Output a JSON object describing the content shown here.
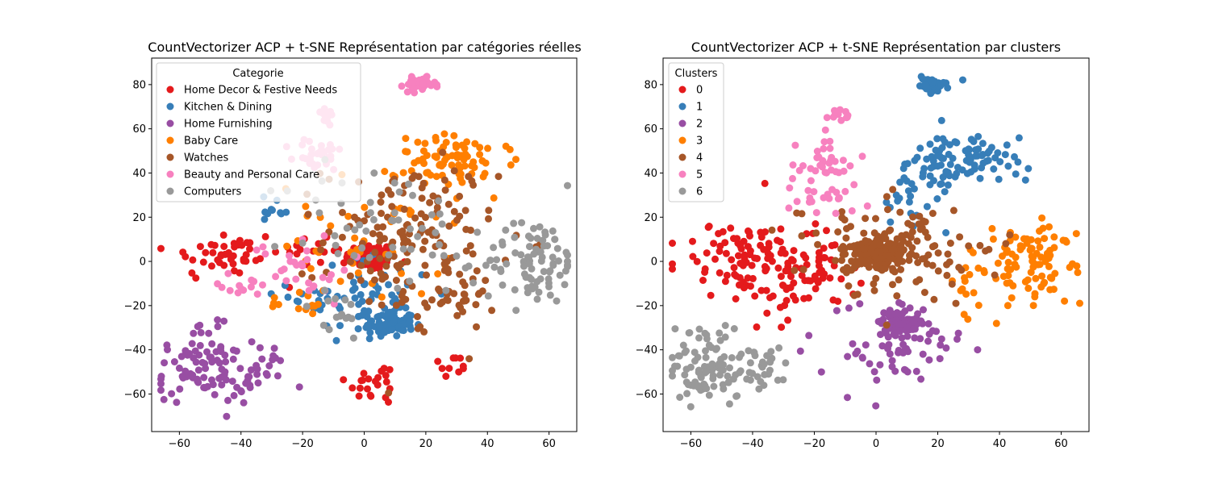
{
  "chart_data": [
    {
      "type": "scatter",
      "title": "CountVectorizer ACP + t-SNE Représentation par catégories réelles",
      "xlabel": "",
      "ylabel": "",
      "xlim": [
        -69,
        69
      ],
      "ylim": [
        -77,
        92
      ],
      "xticks": [
        -60,
        -40,
        -20,
        0,
        20,
        40,
        60
      ],
      "yticks": [
        -60,
        -40,
        -20,
        0,
        20,
        40,
        60,
        80
      ],
      "grid": false,
      "legend": {
        "title": "Categorie",
        "placement": "top-left"
      },
      "series": [
        {
          "name": "Home Decor & Festive Needs",
          "color": "#e41a1c",
          "clusters": [
            {
              "cx": 2,
              "cy": 2,
              "sx": 4,
              "sy": 3,
              "n": 90
            },
            {
              "cx": -45,
              "cy": 3,
              "sx": 9,
              "sy": 6,
              "n": 45
            },
            {
              "cx": 4,
              "cy": -55,
              "sx": 5,
              "sy": 5,
              "n": 22
            },
            {
              "cx": 28,
              "cy": -48,
              "sx": 3,
              "sy": 3,
              "n": 10
            },
            {
              "cx": -15,
              "cy": 5,
              "sx": 6,
              "sy": 4,
              "n": 15
            }
          ]
        },
        {
          "name": "Kitchen & Dining",
          "color": "#377eb8",
          "clusters": [
            {
              "cx": 8,
              "cy": -28,
              "sx": 4,
              "sy": 3,
              "n": 80
            },
            {
              "cx": 0,
              "cy": -15,
              "sx": 12,
              "sy": 9,
              "n": 60
            },
            {
              "cx": -30,
              "cy": 22,
              "sx": 3,
              "sy": 4,
              "n": 10
            }
          ]
        },
        {
          "name": "Home Furnishing",
          "color": "#984ea3",
          "clusters": [
            {
              "cx": -52,
              "cy": -50,
              "sx": 8,
              "sy": 7,
              "n": 75
            },
            {
              "cx": -35,
              "cy": -50,
              "sx": 5,
              "sy": 6,
              "n": 25
            },
            {
              "cx": -52,
              "cy": -33,
              "sx": 3,
              "sy": 3,
              "n": 12
            }
          ]
        },
        {
          "name": "Baby Care",
          "color": "#ff7f00",
          "clusters": [
            {
              "cx": 30,
              "cy": 45,
              "sx": 10,
              "sy": 6,
              "n": 80
            },
            {
              "cx": 0,
              "cy": 10,
              "sx": 14,
              "sy": 14,
              "n": 45
            },
            {
              "cx": -22,
              "cy": -20,
              "sx": 5,
              "sy": 3,
              "n": 12
            }
          ]
        },
        {
          "name": "Watches",
          "color": "#a65628",
          "clusters": [
            {
              "cx": 15,
              "cy": 10,
              "sx": 14,
              "sy": 18,
              "n": 150
            },
            {
              "cx": 30,
              "cy": -15,
              "sx": 6,
              "sy": 8,
              "n": 30
            }
          ]
        },
        {
          "name": "Beauty and Personal Care",
          "color": "#f781bf",
          "clusters": [
            {
              "cx": 18,
              "cy": 80,
              "sx": 2.5,
              "sy": 1.5,
              "n": 45
            },
            {
              "cx": -15,
              "cy": 48,
              "sx": 4,
              "sy": 4,
              "n": 30
            },
            {
              "cx": -13,
              "cy": 67,
              "sx": 2,
              "sy": 2,
              "n": 15
            },
            {
              "cx": -20,
              "cy": -3,
              "sx": 8,
              "sy": 8,
              "n": 30
            },
            {
              "cx": -40,
              "cy": -10,
              "sx": 4,
              "sy": 4,
              "n": 12
            }
          ]
        },
        {
          "name": "Computers",
          "color": "#999999",
          "clusters": [
            {
              "cx": 55,
              "cy": 0,
              "sx": 8,
              "sy": 10,
              "n": 90
            },
            {
              "cx": 5,
              "cy": 15,
              "sx": 15,
              "sy": 15,
              "n": 50
            },
            {
              "cx": -10,
              "cy": -25,
              "sx": 6,
              "sy": 6,
              "n": 15
            }
          ]
        }
      ]
    },
    {
      "type": "scatter",
      "title": "CountVectorizer ACP + t-SNE Représentation par clusters",
      "xlabel": "",
      "ylabel": "",
      "xlim": [
        -69,
        69
      ],
      "ylim": [
        -77,
        92
      ],
      "xticks": [
        -60,
        -40,
        -20,
        0,
        20,
        40,
        60
      ],
      "yticks": [
        -60,
        -40,
        -20,
        0,
        20,
        40,
        60,
        80
      ],
      "grid": false,
      "legend": {
        "title": "Clusters",
        "placement": "top-left"
      },
      "series": [
        {
          "name": "0",
          "color": "#e41a1c",
          "clusters": [
            {
              "cx": -38,
              "cy": 0,
              "sx": 12,
              "sy": 10,
              "n": 120
            },
            {
              "cx": -25,
              "cy": -10,
              "sx": 8,
              "sy": 8,
              "n": 35
            }
          ]
        },
        {
          "name": "1",
          "color": "#377eb8",
          "clusters": [
            {
              "cx": 18,
              "cy": 80,
              "sx": 2.5,
              "sy": 1.5,
              "n": 45
            },
            {
              "cx": 28,
              "cy": 45,
              "sx": 9,
              "sy": 6,
              "n": 90
            },
            {
              "cx": 10,
              "cy": 30,
              "sx": 8,
              "sy": 8,
              "n": 25
            }
          ]
        },
        {
          "name": "2",
          "color": "#984ea3",
          "clusters": [
            {
              "cx": 8,
              "cy": -28,
              "sx": 4,
              "sy": 3,
              "n": 80
            },
            {
              "cx": 5,
              "cy": -38,
              "sx": 12,
              "sy": 10,
              "n": 60
            }
          ]
        },
        {
          "name": "3",
          "color": "#ff7f00",
          "clusters": [
            {
              "cx": 50,
              "cy": 0,
              "sx": 9,
              "sy": 10,
              "n": 90
            },
            {
              "cx": 30,
              "cy": -10,
              "sx": 4,
              "sy": 8,
              "n": 15
            }
          ]
        },
        {
          "name": "4",
          "color": "#a65628",
          "clusters": [
            {
              "cx": 0,
              "cy": 3,
              "sx": 5,
              "sy": 4,
              "n": 110
            },
            {
              "cx": 5,
              "cy": 5,
              "sx": 14,
              "sy": 11,
              "n": 140
            }
          ]
        },
        {
          "name": "5",
          "color": "#f781bf",
          "clusters": [
            {
              "cx": -13,
              "cy": 67,
              "sx": 2,
              "sy": 2,
              "n": 15
            },
            {
              "cx": -15,
              "cy": 47,
              "sx": 4,
              "sy": 4,
              "n": 30
            },
            {
              "cx": -18,
              "cy": 28,
              "sx": 8,
              "sy": 6,
              "n": 25
            }
          ]
        },
        {
          "name": "6",
          "color": "#999999",
          "clusters": [
            {
              "cx": -55,
              "cy": -50,
              "sx": 6,
              "sy": 7,
              "n": 75
            },
            {
              "cx": -38,
              "cy": -50,
              "sx": 7,
              "sy": 6,
              "n": 35
            },
            {
              "cx": -55,
              "cy": -33,
              "sx": 3,
              "sy": 3,
              "n": 12
            }
          ]
        }
      ]
    }
  ]
}
